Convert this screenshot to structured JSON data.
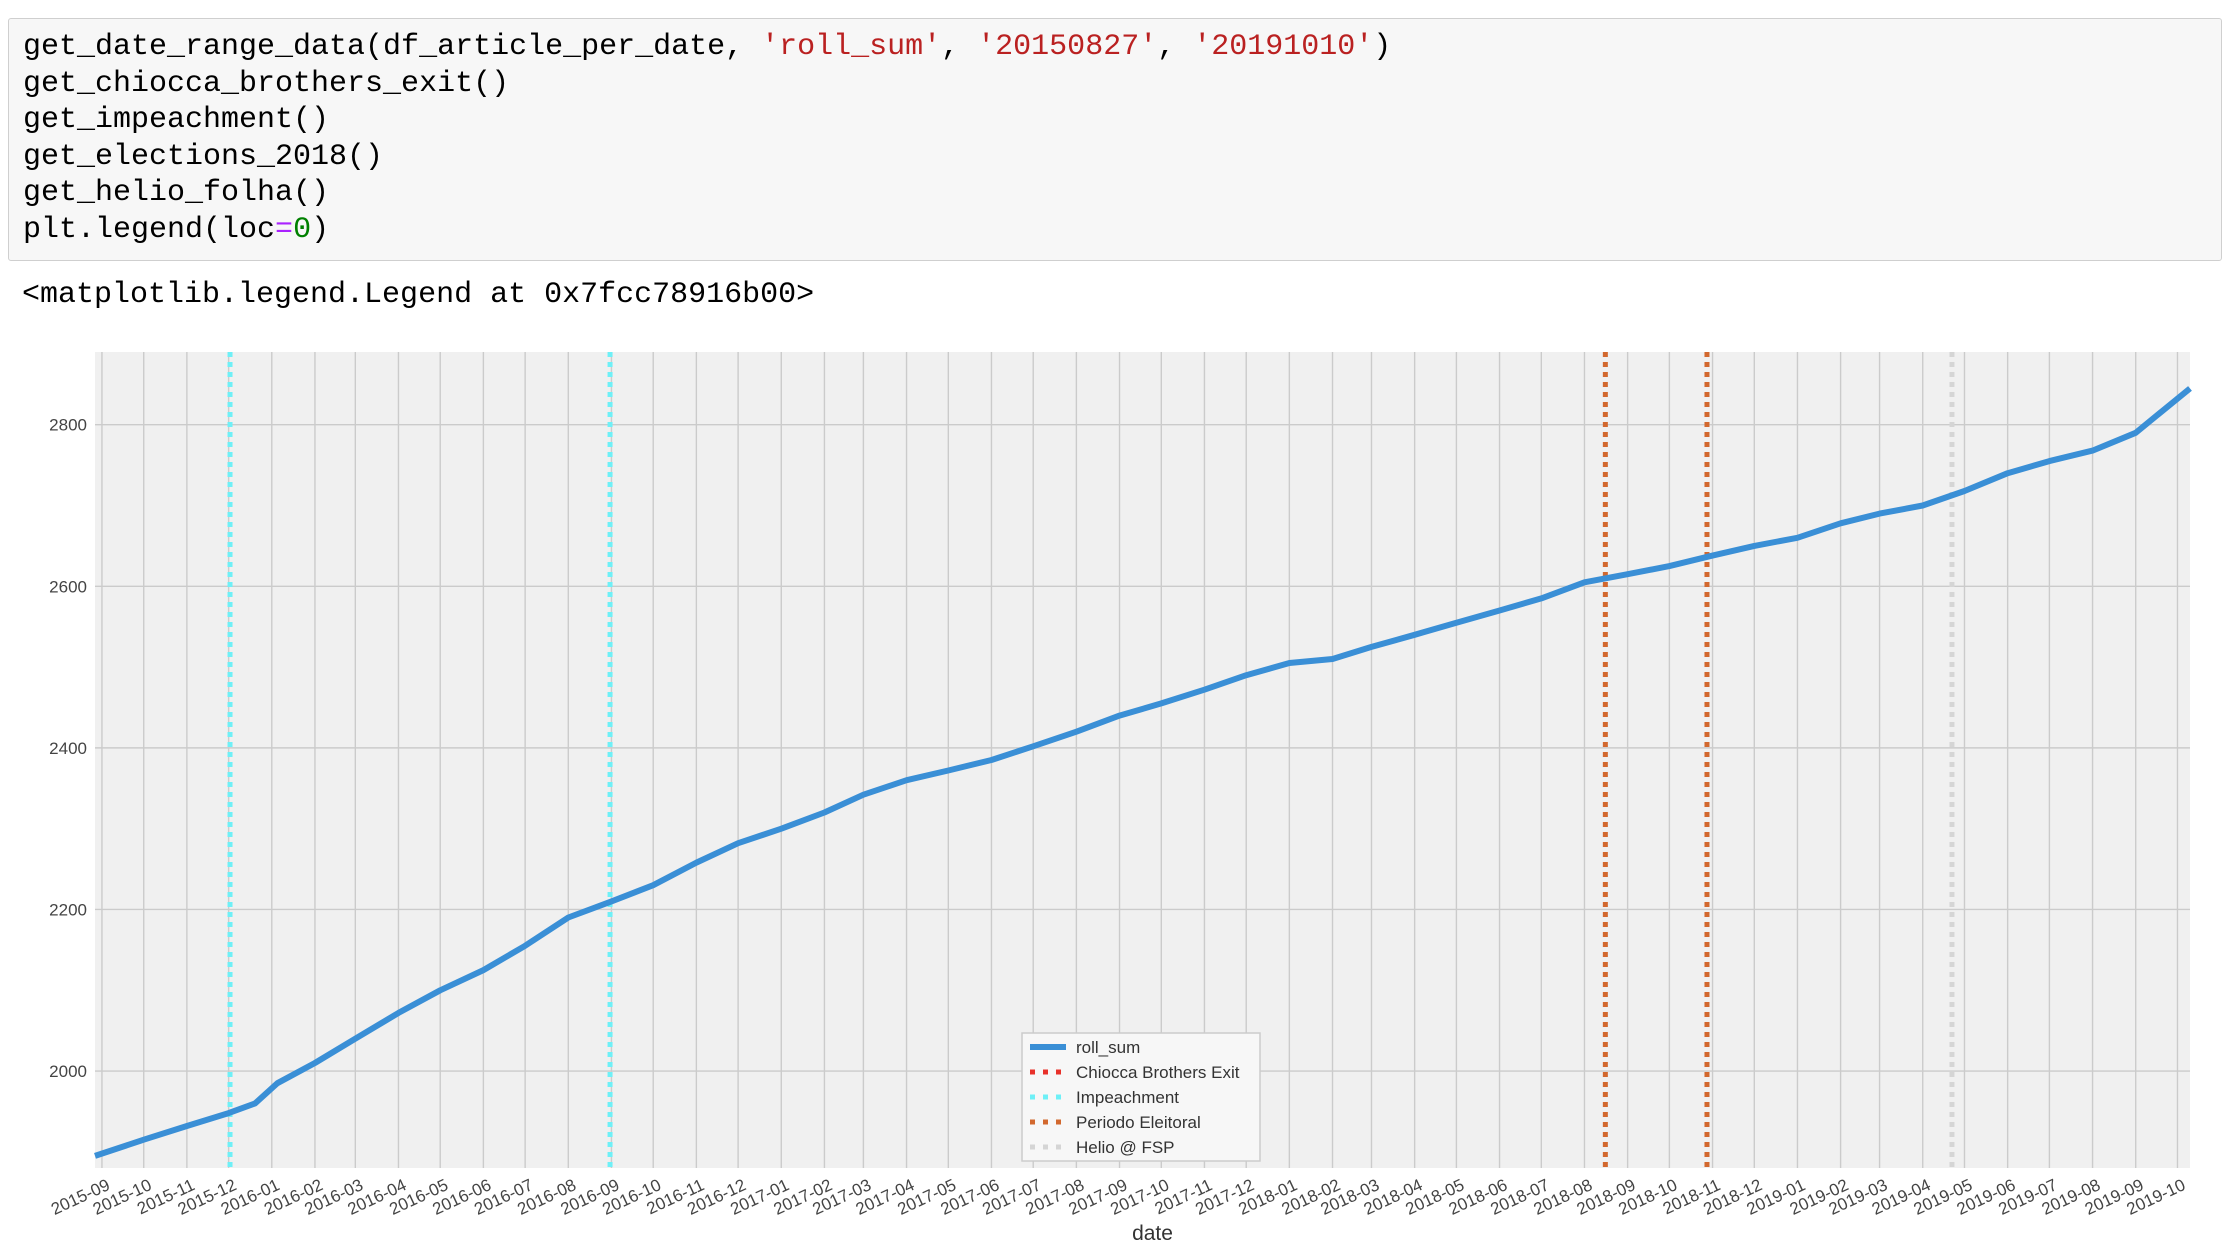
{
  "code_cell": {
    "lines": [
      [
        {
          "t": "get_date_range_data(df_article_per_date, ",
          "c": "plain"
        },
        {
          "t": "'roll_sum'",
          "c": "str"
        },
        {
          "t": ", ",
          "c": "plain"
        },
        {
          "t": "'20150827'",
          "c": "str"
        },
        {
          "t": ", ",
          "c": "plain"
        },
        {
          "t": "'20191010'",
          "c": "str"
        },
        {
          "t": ")",
          "c": "plain"
        }
      ],
      [
        {
          "t": "get_chiocca_brothers_exit()",
          "c": "plain"
        }
      ],
      [
        {
          "t": "get_impeachment()",
          "c": "plain"
        }
      ],
      [
        {
          "t": "get_elections_2018()",
          "c": "plain"
        }
      ],
      [
        {
          "t": "get_helio_folha()",
          "c": "plain"
        }
      ],
      [
        {
          "t": "plt.legend(loc",
          "c": "plain"
        },
        {
          "t": "=",
          "c": "op"
        },
        {
          "t": "0",
          "c": "num"
        },
        {
          "t": ")",
          "c": "plain"
        }
      ]
    ]
  },
  "output": {
    "text": "<matplotlib.legend.Legend at 0x7fcc78916b00>"
  },
  "chart_data": {
    "type": "line",
    "xlabel": "date",
    "ylabel": "",
    "title": "",
    "grid": true,
    "legend_position": "lower-center",
    "xlim": [
      "2015-08-27",
      "2019-10-10"
    ],
    "ylim": [
      1880,
      2890
    ],
    "yticks": [
      2000,
      2200,
      2400,
      2600,
      2800
    ],
    "xticks": [
      "2015-09",
      "2015-10",
      "2015-11",
      "2015-12",
      "2016-01",
      "2016-02",
      "2016-03",
      "2016-04",
      "2016-05",
      "2016-06",
      "2016-07",
      "2016-08",
      "2016-09",
      "2016-10",
      "2016-11",
      "2016-12",
      "2017-01",
      "2017-02",
      "2017-03",
      "2017-04",
      "2017-05",
      "2017-06",
      "2017-07",
      "2017-08",
      "2017-09",
      "2017-10",
      "2017-11",
      "2017-12",
      "2018-01",
      "2018-02",
      "2018-03",
      "2018-04",
      "2018-05",
      "2018-06",
      "2018-07",
      "2018-08",
      "2018-09",
      "2018-10",
      "2018-11",
      "2018-12",
      "2019-01",
      "2019-02",
      "2019-03",
      "2019-04",
      "2019-05",
      "2019-06",
      "2019-07",
      "2019-08",
      "2019-09",
      "2019-10"
    ],
    "series": [
      {
        "name": "roll_sum",
        "color": "#3a8fd6",
        "points": [
          [
            "2015-08-27",
            1895
          ],
          [
            "2015-10-01",
            1915
          ],
          [
            "2015-11-01",
            1932
          ],
          [
            "2015-12-01",
            1948
          ],
          [
            "2015-12-20",
            1960
          ],
          [
            "2016-01-05",
            1985
          ],
          [
            "2016-02-01",
            2010
          ],
          [
            "2016-03-01",
            2040
          ],
          [
            "2016-04-01",
            2072
          ],
          [
            "2016-05-01",
            2100
          ],
          [
            "2016-06-01",
            2125
          ],
          [
            "2016-07-01",
            2155
          ],
          [
            "2016-08-01",
            2190
          ],
          [
            "2016-09-01",
            2210
          ],
          [
            "2016-10-01",
            2230
          ],
          [
            "2016-11-01",
            2258
          ],
          [
            "2016-12-01",
            2282
          ],
          [
            "2017-01-01",
            2300
          ],
          [
            "2017-02-01",
            2320
          ],
          [
            "2017-03-01",
            2342
          ],
          [
            "2017-04-01",
            2360
          ],
          [
            "2017-05-01",
            2372
          ],
          [
            "2017-06-01",
            2385
          ],
          [
            "2017-07-01",
            2402
          ],
          [
            "2017-08-01",
            2420
          ],
          [
            "2017-09-01",
            2440
          ],
          [
            "2017-10-01",
            2455
          ],
          [
            "2017-11-01",
            2472
          ],
          [
            "2017-12-01",
            2490
          ],
          [
            "2018-01-01",
            2505
          ],
          [
            "2018-02-01",
            2510
          ],
          [
            "2018-03-01",
            2525
          ],
          [
            "2018-04-01",
            2540
          ],
          [
            "2018-05-01",
            2555
          ],
          [
            "2018-06-01",
            2570
          ],
          [
            "2018-07-01",
            2585
          ],
          [
            "2018-08-01",
            2605
          ],
          [
            "2018-09-01",
            2615
          ],
          [
            "2018-10-01",
            2625
          ],
          [
            "2018-11-01",
            2638
          ],
          [
            "2018-12-01",
            2650
          ],
          [
            "2019-01-01",
            2660
          ],
          [
            "2019-02-01",
            2678
          ],
          [
            "2019-03-01",
            2690
          ],
          [
            "2019-04-01",
            2700
          ],
          [
            "2019-05-01",
            2718
          ],
          [
            "2019-06-01",
            2740
          ],
          [
            "2019-07-01",
            2755
          ],
          [
            "2019-08-01",
            2768
          ],
          [
            "2019-09-01",
            2790
          ],
          [
            "2019-10-10",
            2845
          ]
        ]
      },
      {
        "name": "Chiocca Brothers Exit",
        "color": "#e8312a",
        "dates": []
      },
      {
        "name": "Impeachment",
        "color": "#6ef0f7",
        "dates": [
          "2015-12-02",
          "2016-08-31"
        ]
      },
      {
        "name": "Periodo Eleitoral",
        "color": "#d2682e",
        "dates": [
          "2018-08-16",
          "2018-10-28"
        ]
      },
      {
        "name": "Helio @ FSP",
        "color": "#d5d5d5",
        "dates": [
          "2019-04-22"
        ]
      }
    ]
  }
}
